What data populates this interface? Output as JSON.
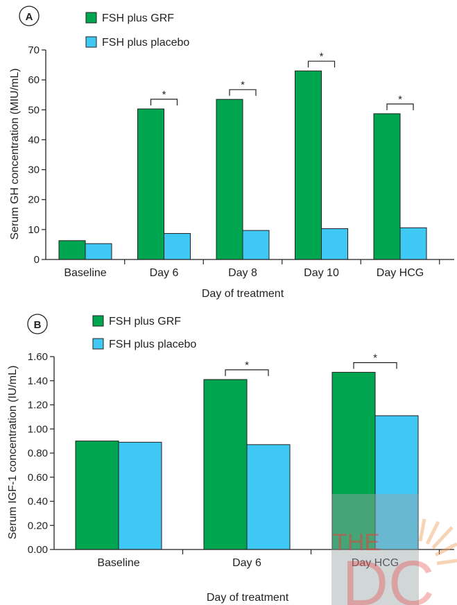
{
  "colors": {
    "grf": "#00a64f",
    "placebo": "#40c8f4",
    "axis": "#231f20",
    "watermark_box": "#9aa3a6",
    "watermark_logo": "#e84040"
  },
  "watermark": {
    "text": "THE",
    "logo_text": "DC"
  },
  "chart_data": [
    {
      "panel": "A",
      "type": "bar",
      "xlabel": "Day of treatment",
      "ylabel": "Serum GH concentration (MIU/mL)",
      "ylim": [
        0,
        70
      ],
      "yticks": [
        "0",
        "10",
        "20",
        "30",
        "40",
        "50",
        "60",
        "70"
      ],
      "categories": [
        "Baseline",
        "Day 6",
        "Day 8",
        "Day 10",
        "Day HCG"
      ],
      "series": [
        {
          "name": "FSH plus GRF",
          "color": "#00a64f",
          "values": [
            6.3,
            50.3,
            53.5,
            63.0,
            48.7
          ]
        },
        {
          "name": "FSH plus placebo",
          "color": "#40c8f4",
          "values": [
            5.3,
            8.7,
            9.7,
            10.3,
            10.6
          ]
        }
      ],
      "significance": [
        {
          "category": "Day 6",
          "label": "*"
        },
        {
          "category": "Day 8",
          "label": "*"
        },
        {
          "category": "Day 10",
          "label": "*"
        },
        {
          "category": "Day HCG",
          "label": "*"
        }
      ]
    },
    {
      "panel": "B",
      "type": "bar",
      "xlabel": "Day of treatment",
      "ylabel": "Serum IGF-1 concentration (IU/mL)",
      "ylim": [
        0,
        1.6
      ],
      "yticks": [
        "0.00",
        "0.20",
        "0.40",
        "0.60",
        "0.80",
        "1.00",
        "1.20",
        "1.40",
        "1.60"
      ],
      "categories": [
        "Baseline",
        "Day 6",
        "Day HCG"
      ],
      "series": [
        {
          "name": "FSH plus GRF",
          "color": "#00a64f",
          "values": [
            0.9,
            1.41,
            1.47
          ]
        },
        {
          "name": "FSH plus placebo",
          "color": "#40c8f4",
          "values": [
            0.89,
            0.87,
            1.11
          ]
        }
      ],
      "significance": [
        {
          "category": "Day 6",
          "label": "*"
        },
        {
          "category": "Day HCG",
          "label": "*"
        }
      ]
    }
  ]
}
